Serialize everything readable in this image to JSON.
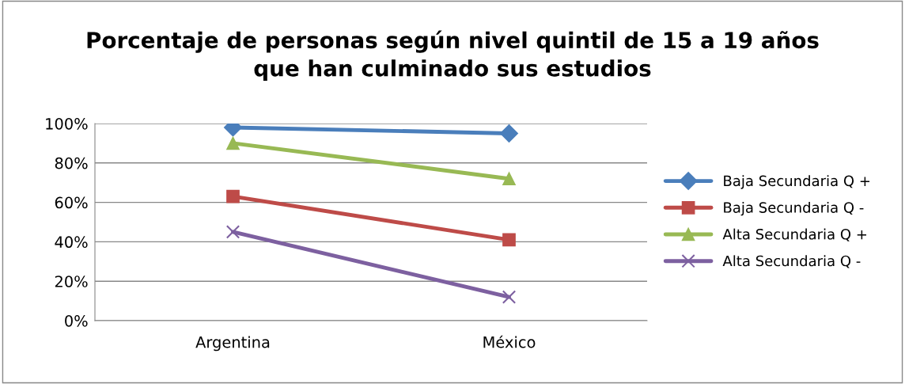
{
  "chart_data": {
    "type": "line",
    "title": "Porcentaje de personas según nivel quintil de 15 a 19 años\nque han culminado sus estudios",
    "categories": [
      "Argentina",
      "México"
    ],
    "series": [
      {
        "name": "Baja Secundaria Q +",
        "color": "#4a7ebb",
        "marker": "diamond",
        "values": [
          98,
          95
        ]
      },
      {
        "name": "Baja Secundaria Q -",
        "color": "#be4b48",
        "marker": "square",
        "values": [
          63,
          41
        ]
      },
      {
        "name": "Alta Secundaria Q +",
        "color": "#98b954",
        "marker": "triangle",
        "values": [
          90,
          72
        ]
      },
      {
        "name": "Alta Secundaria Q -",
        "color": "#7d60a0",
        "marker": "cross",
        "values": [
          45,
          12
        ]
      }
    ],
    "ylim": [
      0,
      100
    ],
    "yticks": [
      {
        "value": 0,
        "label": "0%"
      },
      {
        "value": 20,
        "label": "20%"
      },
      {
        "value": 40,
        "label": "40%"
      },
      {
        "value": 60,
        "label": "60%"
      },
      {
        "value": 80,
        "label": "80%"
      },
      {
        "value": 100,
        "label": "100%"
      }
    ],
    "grid": "y",
    "legend": "right",
    "line_style": "solid"
  }
}
